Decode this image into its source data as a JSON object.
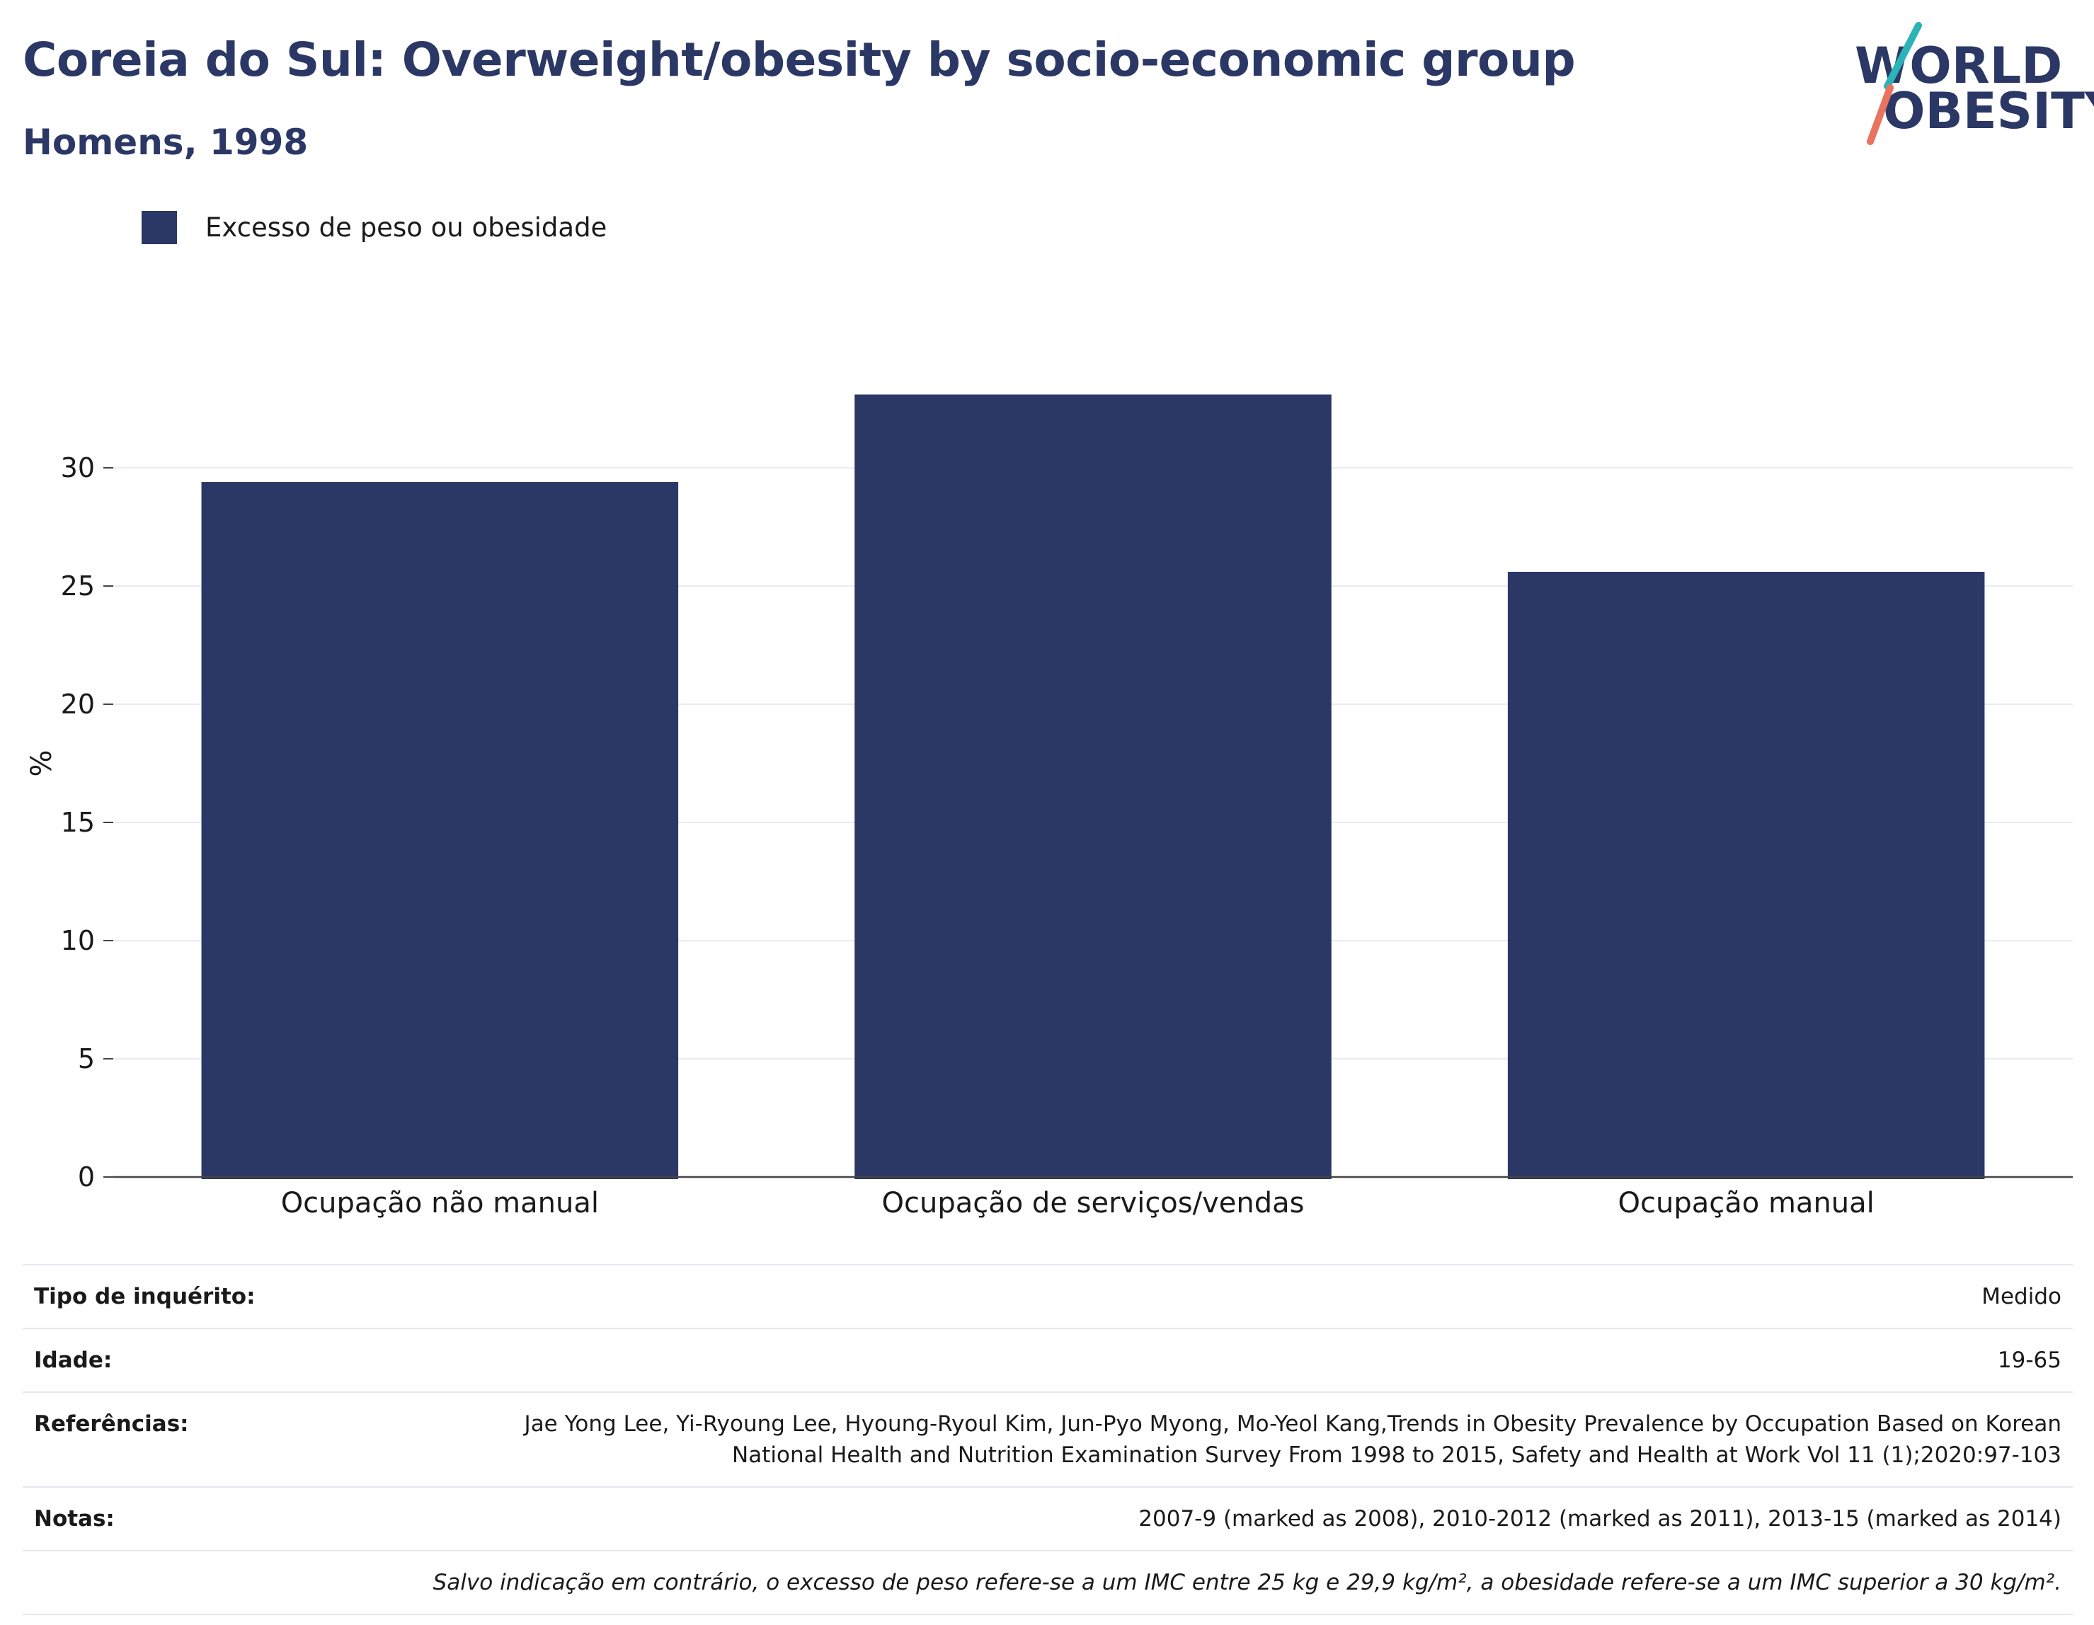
{
  "header": {
    "title": "Coreia do Sul: Overweight/obesity by socio-economic group",
    "subtitle": "Homens, 1998"
  },
  "logo": {
    "line1": "WORLD",
    "line2": "OBESITY",
    "icon": "world-obesity-logo"
  },
  "colors": {
    "bar": "#2b3765",
    "logo_teal": "#2bb3b7",
    "logo_coral": "#e8735f"
  },
  "legend": {
    "label": "Excesso de peso ou obesidade"
  },
  "chart_data": {
    "type": "bar",
    "categories": [
      "Ocupação não manual",
      "Ocupação de serviços/vendas",
      "Ocupação manual"
    ],
    "series": [
      {
        "name": "Excesso de peso ou obesidade",
        "values": [
          29.4,
          33.1,
          25.6
        ]
      }
    ],
    "ylabel": "%",
    "ylim": [
      0,
      35
    ],
    "yticks": [
      0,
      5,
      10,
      15,
      20,
      25,
      30
    ],
    "grid": true,
    "legend_position": "top-left"
  },
  "meta": {
    "survey_type": {
      "key": "Tipo de inquérito:",
      "value": "Medido"
    },
    "age": {
      "key": "Idade:",
      "value": "19-65"
    },
    "references": {
      "key": "Referências:",
      "value": "Jae Yong Lee, Yi-Ryoung Lee, Hyoung-Ryoul Kim, Jun-Pyo Myong, Mo-Yeol Kang,Trends in Obesity Prevalence by Occupation Based on Korean National Health and Nutrition Examination Survey From 1998 to 2015, Safety and Health at Work Vol 11 (1);2020:97-103"
    },
    "notes": {
      "key": "Notas:",
      "value": "2007-9 (marked as 2008), 2010-2012 (marked as 2011), 2013-15 (marked as 2014)"
    },
    "footnote": "Salvo indicação em contrário, o excesso de peso refere-se a um IMC entre 25 kg e 29,9 kg/m², a obesidade refere-se a um IMC superior a 30 kg/m²."
  }
}
